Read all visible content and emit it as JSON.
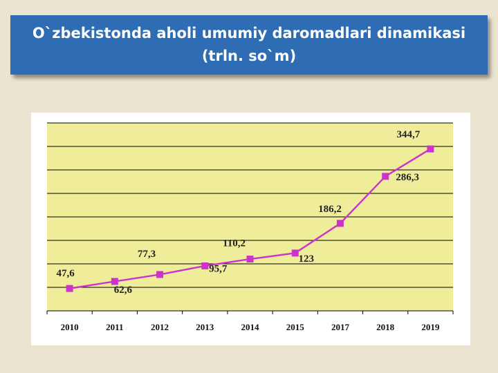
{
  "chart_data": {
    "type": "line",
    "title": [
      "O`zbekistonda aholi umumiy daromadlari dinamikasi",
      "(trln. so`m)"
    ],
    "categories": [
      "2010",
      "2011",
      "2012",
      "2013",
      "2014",
      "2015",
      "2017",
      "2018",
      "2019"
    ],
    "values": [
      47.6,
      62.6,
      77.3,
      95.7,
      110.2,
      123,
      186.2,
      286.3,
      344.7
    ],
    "value_labels": [
      "47,6",
      "62,6",
      "77,3",
      "95,7",
      "110,2",
      "123",
      "186,2",
      "286,3",
      "344,7"
    ],
    "color": "#cc33cc",
    "ylim": [
      0,
      400
    ],
    "yticks": [
      0,
      50,
      100,
      150,
      200,
      250,
      300,
      350,
      400
    ],
    "grid": true
  }
}
